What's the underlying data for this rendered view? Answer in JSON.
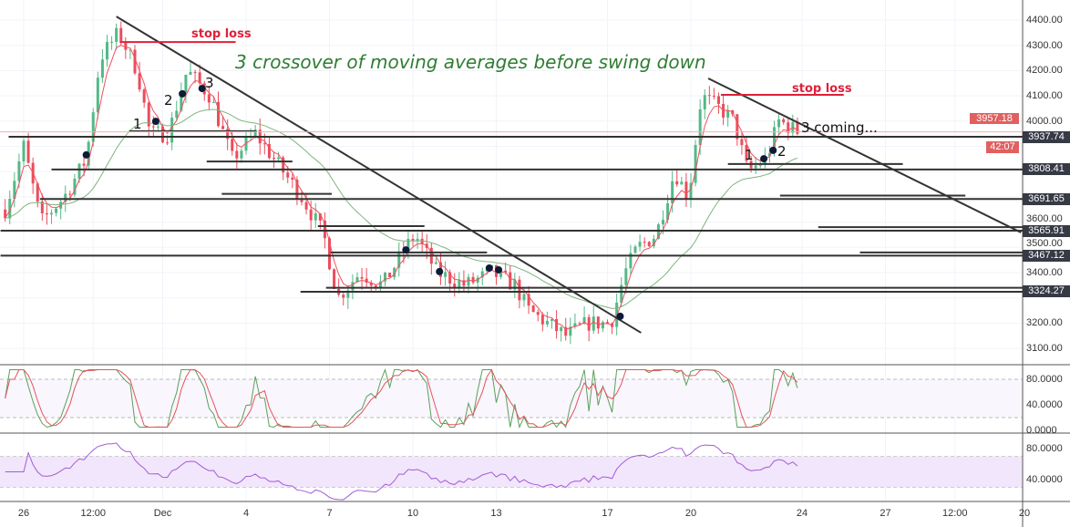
{
  "chart_data": {
    "type": "candlestick",
    "title": "3 crossover of moving averages before swing down",
    "price_axis": {
      "range": [
        3050,
        4450
      ],
      "ticks": [
        4400,
        4300,
        4200,
        4100,
        4000,
        3600,
        3500,
        3400,
        3200,
        3100
      ],
      "tick_labels": [
        "4400.00",
        "4300.00",
        "4200.00",
        "4100.00",
        "4000.00",
        "3600.00",
        "3500.00",
        "3400.00",
        "3200.00",
        "3100.00"
      ]
    },
    "time_ticks": [
      {
        "label": "26",
        "t": "2018-11-26 00:00"
      },
      {
        "label": "12:00",
        "t": "2018-11-28 12:00"
      },
      {
        "label": "Dec",
        "t": "2018-12-01 00:00"
      },
      {
        "label": "4",
        "t": "2018-12-04 00:00"
      },
      {
        "label": "7",
        "t": "2018-12-07 00:00"
      },
      {
        "label": "10",
        "t": "2018-12-10 00:00"
      },
      {
        "label": "13",
        "t": "2018-12-13 00:00"
      },
      {
        "label": "17",
        "t": "2018-12-17 00:00"
      },
      {
        "label": "20",
        "t": "2018-12-20 00:00"
      },
      {
        "label": "24",
        "t": "2018-12-24 00:00"
      },
      {
        "label": "27",
        "t": "2018-12-27 00:00"
      },
      {
        "label": "12:00",
        "t": "2018-12-29 12:00"
      },
      {
        "label": "20",
        "t": "2019-01-01 00:00"
      }
    ],
    "price_path": [
      [
        "2018-11-25 08:00",
        3650
      ],
      [
        "2018-11-26 00:00",
        3900
      ],
      [
        "2018-11-26 15:00",
        3600
      ],
      [
        "2018-11-27 11:00",
        3700
      ],
      [
        "2018-11-28 06:00",
        3850
      ],
      [
        "2018-11-28 18:00",
        4250
      ],
      [
        "2018-11-29 10:00",
        4350
      ],
      [
        "2018-11-30 02:00",
        4200
      ],
      [
        "2018-11-30 13:00",
        3950
      ],
      [
        "2018-12-01 05:00",
        3950
      ],
      [
        "2018-12-01 21:00",
        4200
      ],
      [
        "2018-12-02 17:00",
        4100
      ],
      [
        "2018-12-03 12:00",
        3850
      ],
      [
        "2018-12-04 08:00",
        3950
      ],
      [
        "2018-12-05 00:00",
        3850
      ],
      [
        "2018-12-06 00:00",
        3700
      ],
      [
        "2018-12-06 19:00",
        3550
      ],
      [
        "2018-12-07 07:00",
        3300
      ],
      [
        "2018-12-08 02:00",
        3400
      ],
      [
        "2018-12-08 22:00",
        3350
      ],
      [
        "2018-12-09 18:00",
        3500
      ],
      [
        "2018-12-10 02:00",
        3550
      ],
      [
        "2018-12-10 21:00",
        3400
      ],
      [
        "2018-12-11 21:00",
        3350
      ],
      [
        "2018-12-12 20:00",
        3400
      ],
      [
        "2018-12-13 16:00",
        3350
      ],
      [
        "2018-12-14 04:00",
        3250
      ],
      [
        "2018-12-14 20:00",
        3200
      ],
      [
        "2018-12-15 12:00",
        3150
      ],
      [
        "2018-12-16 07:00",
        3200
      ],
      [
        "2018-12-17 03:00",
        3200
      ],
      [
        "2018-12-17 15:00",
        3400
      ],
      [
        "2018-12-18 02:00",
        3500
      ],
      [
        "2018-12-18 18:00",
        3550
      ],
      [
        "2018-12-19 10:00",
        3800
      ],
      [
        "2018-12-19 22:00",
        3700
      ],
      [
        "2018-12-20 09:00",
        4100
      ],
      [
        "2018-12-21 01:00",
        4050
      ],
      [
        "2018-12-21 13:00",
        4000
      ],
      [
        "2018-12-22 01:00",
        3800
      ],
      [
        "2018-12-22 17:00",
        3850
      ],
      [
        "2018-12-23 04:00",
        4000
      ],
      [
        "2018-12-23 20:00",
        3960
      ]
    ],
    "moving_averages": [
      {
        "color": "#f0505e"
      },
      {
        "color": "#7fb47f"
      }
    ],
    "crossover_points": [
      [
        "2018-11-28 06:00",
        3866
      ],
      [
        "2018-11-30 18:00",
        3999
      ],
      [
        "2018-12-01 17:00",
        4108
      ],
      [
        "2018-12-02 10:00",
        4129
      ],
      [
        "2018-12-09 18:00",
        3490
      ],
      [
        "2018-12-10 23:00",
        3404
      ],
      [
        "2018-12-12 18:00",
        3418
      ],
      [
        "2018-12-13 02:00",
        3411
      ],
      [
        "2018-12-17 11:00",
        3227
      ],
      [
        "2018-12-22 15:00",
        3851
      ],
      [
        "2018-12-22 23:00",
        3884
      ]
    ],
    "trendlines": [
      {
        "from": [
          "2018-11-29 08:00",
          4414
        ],
        "to": [
          "2018-12-18 05:00",
          3162
        ]
      },
      {
        "from": [
          "2018-12-20 15:00",
          4169
        ],
        "to": [
          "2018-12-31 21:00",
          3559
        ]
      }
    ],
    "levels": [
      {
        "price": 3937.74,
        "label": "3937.74",
        "from": "2018-11-25 11:00"
      },
      {
        "price": 3808.41,
        "label": "3808.41",
        "from": "2018-11-27 00:00"
      },
      {
        "price": 3691.65,
        "label": "3691.65",
        "from": "2018-11-26 14:00"
      },
      {
        "price": 3565.91,
        "label": "3565.91",
        "from": "2018-11-25 04:00"
      },
      {
        "price": 3467.12,
        "label": "3467.12",
        "from": "2018-11-25 04:00"
      },
      {
        "price": 3324.27,
        "label": "3324.27",
        "from": "2018-12-05 23:00"
      }
    ],
    "segments": [
      {
        "price": 3960,
        "from": "2018-11-29 19:00",
        "to": "2018-12-04 09:00"
      },
      {
        "price": 3840,
        "from": "2018-12-02 14:00",
        "to": "2018-12-05 16:00"
      },
      {
        "price": 3712,
        "from": "2018-12-03 03:00",
        "to": "2018-12-07 02:00"
      },
      {
        "price": 3584,
        "from": "2018-12-06 14:00",
        "to": "2018-12-10 10:00"
      },
      {
        "price": 3480,
        "from": "2018-12-07 01:00",
        "to": "2018-12-12 16:00"
      },
      {
        "price": 3340,
        "from": "2018-12-06 21:00",
        "to": "2018-12-31 23:00"
      },
      {
        "price": 3830,
        "from": "2018-12-21 08:00",
        "to": "2018-12-27 15:00"
      },
      {
        "price": 3705,
        "from": "2018-12-23 05:00",
        "to": "2018-12-29 21:00"
      },
      {
        "price": 3580,
        "from": "2018-12-24 14:00",
        "to": "2018-12-31 23:00"
      },
      {
        "price": 3480,
        "from": "2018-12-26 02:00",
        "to": "2018-12-31 23:00"
      }
    ],
    "stop_losses": [
      {
        "label": "stop loss",
        "price": 4313,
        "from": "2018-11-29 11:00",
        "to": "2018-12-03 15:00"
      },
      {
        "label": "stop loss",
        "price": 4104,
        "from": "2018-12-21 02:00",
        "to": "2018-12-25 12:00"
      }
    ],
    "annotations": {
      "left": [
        "1",
        "2",
        "3"
      ],
      "right": [
        "1",
        "2"
      ],
      "coming": "3 coming..."
    },
    "last_price": {
      "value": "3957.18",
      "countdown": "42:07",
      "color": "#e06060"
    },
    "stochastic": {
      "axis_labels": [
        "80.0000",
        "40.0000",
        "0.0000"
      ],
      "band": [
        20,
        80
      ],
      "colors": [
        "#e5535e",
        "#5aa05a"
      ]
    },
    "rsi": {
      "axis_labels": [
        "80.0000",
        "40.0000"
      ],
      "band": [
        30,
        70
      ],
      "color": "#a45bd6"
    },
    "colors": {
      "up": "#53b987",
      "down": "#eb4d5c",
      "trendline": "#333333",
      "level": "#333333"
    }
  }
}
